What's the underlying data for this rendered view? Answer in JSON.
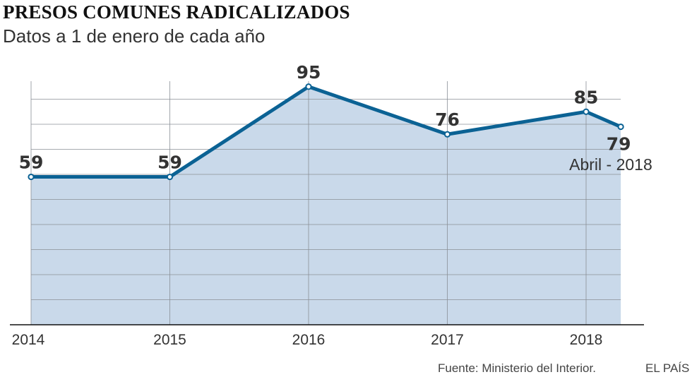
{
  "header": {
    "title": "PRESOS COMUNES RADICALIZADOS",
    "subtitle": "Datos a 1 de enero de cada año"
  },
  "chart_data": {
    "type": "area",
    "x": [
      2014,
      2015,
      2016,
      2017,
      2018,
      2018.25
    ],
    "x_tick_labels": [
      "2014",
      "2015",
      "2016",
      "2017",
      "2018"
    ],
    "x_tick_values": [
      2014,
      2015,
      2016,
      2017,
      2018
    ],
    "values": [
      59,
      59,
      95,
      76,
      85,
      79
    ],
    "data_labels": [
      "59",
      "59",
      "95",
      "76",
      "85",
      "79"
    ],
    "annotations": [
      {
        "x": 2018.25,
        "text": "Abril - 2018"
      }
    ],
    "ylim": [
      0,
      100
    ],
    "grid": true,
    "colors": {
      "line": "#0b6294",
      "fill": "#c9d9ea",
      "grid": "#8a8f96",
      "axis": "#111111",
      "text": "#333333"
    }
  },
  "footer": {
    "source": "Fuente: Ministerio del Interior.",
    "brand": "EL PAÍS"
  }
}
